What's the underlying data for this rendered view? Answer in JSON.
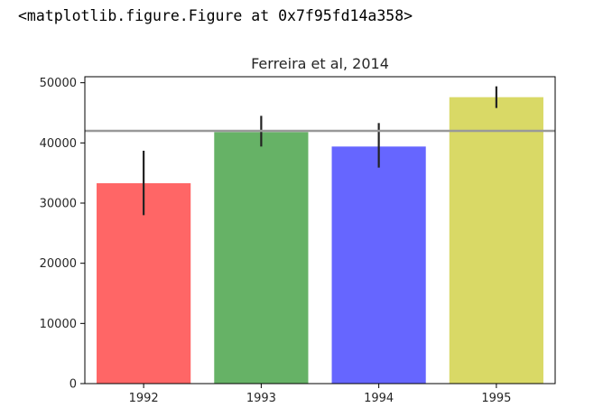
{
  "output_text": "<matplotlib.figure.Figure at 0x7f95fd14a358>",
  "chart_data": {
    "type": "bar",
    "title": "Ferreira et al, 2014",
    "categories": [
      "1992",
      "1993",
      "1994",
      "1995"
    ],
    "values": [
      33300,
      41800,
      39400,
      47600
    ],
    "error_low": [
      28000,
      39400,
      35900,
      45800
    ],
    "error_high": [
      38700,
      44500,
      43300,
      49400
    ],
    "colors": [
      "#ff6666",
      "#66b266",
      "#6666ff",
      "#d9d966"
    ],
    "error_color": "#222222",
    "reference_line": {
      "y": 42000,
      "color": "#999999"
    },
    "ylim": [
      0,
      51000
    ],
    "yticks": [
      0,
      10000,
      20000,
      30000,
      40000,
      50000
    ],
    "xlabel": "",
    "ylabel": "",
    "grid": false
  }
}
